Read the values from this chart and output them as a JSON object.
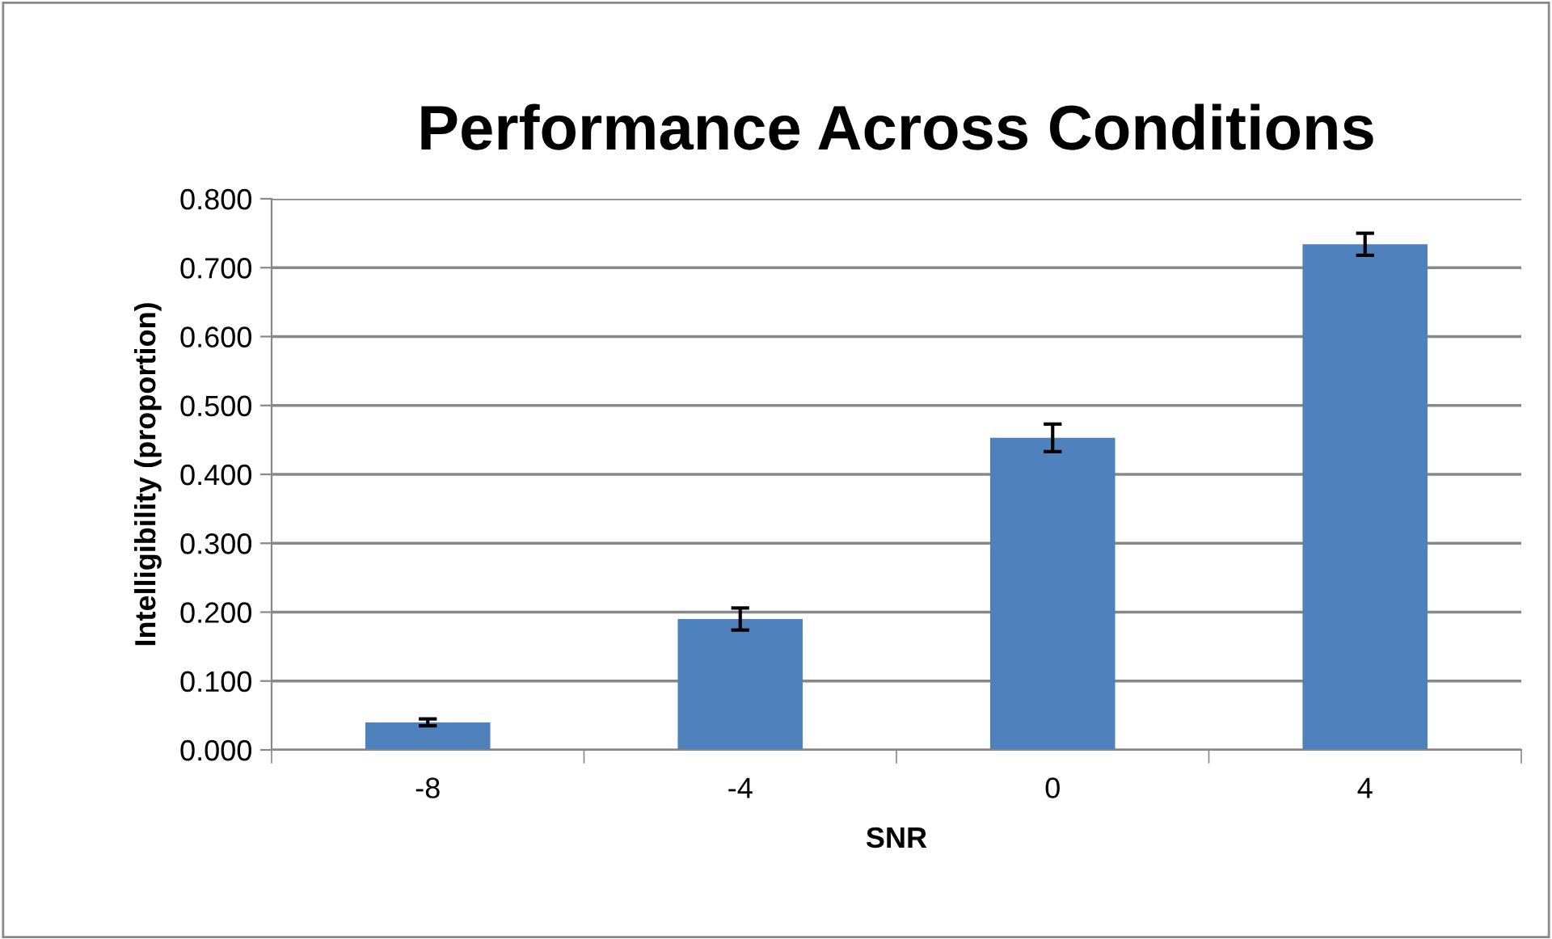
{
  "chart_data": {
    "type": "bar",
    "title": "Performance Across Conditions",
    "xlabel": "SNR",
    "ylabel": "Intelligibility (proportion)",
    "categories": [
      "-8",
      "-4",
      "0",
      "4"
    ],
    "values": [
      0.04,
      0.19,
      0.453,
      0.734
    ],
    "errors": [
      0.005,
      0.016,
      0.02,
      0.016
    ],
    "color": "#4f81bd",
    "ylim": [
      0,
      0.8
    ],
    "yticks": [
      {
        "value": 0,
        "label": "0.000"
      },
      {
        "value": 0.1,
        "label": "0.100"
      },
      {
        "value": 0.2,
        "label": "0.200"
      },
      {
        "value": 0.3,
        "label": "0.300"
      },
      {
        "value": 0.4,
        "label": "0.400"
      },
      {
        "value": 0.5,
        "label": "0.500"
      },
      {
        "value": 0.6,
        "label": "0.600"
      },
      {
        "value": 0.7,
        "label": "0.700"
      },
      {
        "value": 0.8,
        "label": "0.800"
      }
    ],
    "grid": "y",
    "legend": false
  }
}
